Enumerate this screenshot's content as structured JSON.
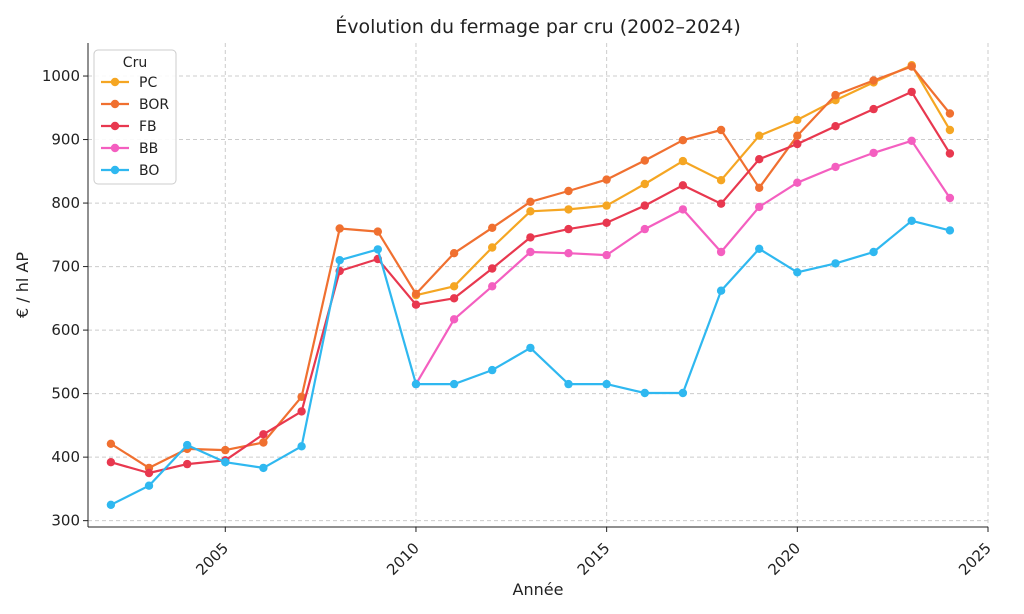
{
  "chart_data": {
    "type": "line",
    "title": "Évolution du fermage par cru (2002–2024)",
    "xlabel": "Année",
    "ylabel": "€ / hl AP",
    "xlim": [
      2001.4,
      2025
    ],
    "ylim": [
      290,
      1052
    ],
    "x_ticks": [
      2005,
      2010,
      2015,
      2020,
      2025
    ],
    "y_ticks": [
      300,
      400,
      500,
      600,
      700,
      800,
      900,
      1000
    ],
    "grid": true,
    "legend": {
      "title": "Cru",
      "placement": "top-left"
    },
    "x": [
      2002,
      2003,
      2004,
      2005,
      2006,
      2007,
      2008,
      2009,
      2010,
      2011,
      2012,
      2013,
      2014,
      2015,
      2016,
      2017,
      2018,
      2019,
      2020,
      2021,
      2022,
      2023,
      2024
    ],
    "series": [
      {
        "name": "PC",
        "color": "#f5a623",
        "values": [
          null,
          null,
          null,
          null,
          null,
          null,
          null,
          null,
          655,
          669,
          730,
          787,
          790,
          796,
          830,
          866,
          836,
          906,
          931,
          962,
          990,
          1017,
          915
        ]
      },
      {
        "name": "BOR",
        "color": "#f07030",
        "values": [
          421,
          383,
          413,
          411,
          423,
          495,
          760,
          755,
          657,
          721,
          761,
          802,
          819,
          837,
          867,
          899,
          915,
          824,
          906,
          970,
          993,
          1015,
          941
        ]
      },
      {
        "name": "FB",
        "color": "#e8384f",
        "values": [
          392,
          375,
          389,
          395,
          436,
          472,
          693,
          712,
          640,
          650,
          697,
          746,
          759,
          769,
          796,
          828,
          799,
          869,
          893,
          921,
          948,
          975,
          878
        ]
      },
      {
        "name": "BB",
        "color": "#f45fc0",
        "values": [
          null,
          null,
          null,
          null,
          null,
          null,
          null,
          null,
          515,
          617,
          669,
          723,
          721,
          718,
          759,
          790,
          723,
          794,
          832,
          857,
          879,
          898,
          808
        ]
      },
      {
        "name": "BO",
        "color": "#2fb8f0",
        "values": [
          325,
          355,
          419,
          392,
          383,
          417,
          710,
          727,
          515,
          515,
          537,
          572,
          515,
          515,
          501,
          501,
          662,
          728,
          691,
          705,
          723,
          772,
          757
        ]
      }
    ]
  }
}
